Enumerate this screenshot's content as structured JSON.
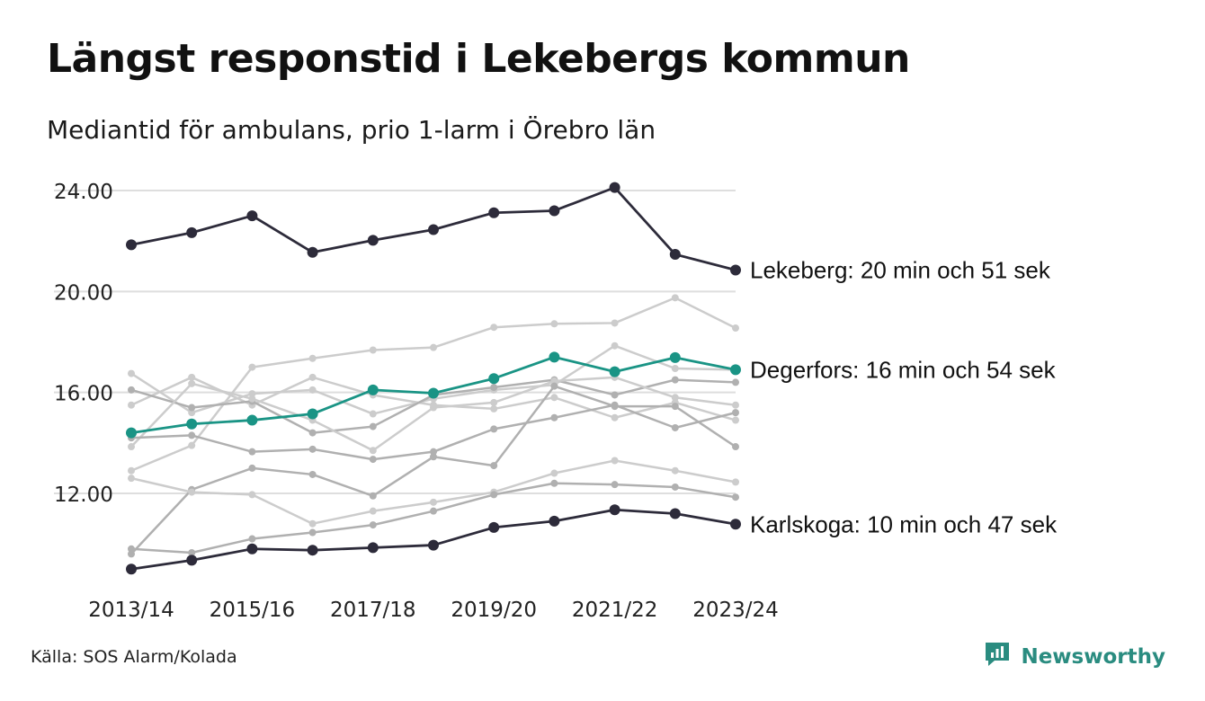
{
  "title": "Längst responstid i Lekebergs kommun",
  "subtitle": "Mediantid för ambulans, prio 1-larm i Örebro län",
  "source": "Källa: SOS Alarm/Kolada",
  "brand": {
    "name": "Newsworthy",
    "icon": "newsworthy-logo-icon",
    "color": "#2a8c80"
  },
  "chart_data": {
    "type": "line",
    "x": [
      "2013/14",
      "2014/15",
      "2015/16",
      "2016/17",
      "2017/18",
      "2018/19",
      "2019/20",
      "2020/21",
      "2021/22",
      "2022/23",
      "2023/24"
    ],
    "x_tick_labels": [
      "2013/14",
      "2015/16",
      "2017/18",
      "2019/20",
      "2021/22",
      "2023/24"
    ],
    "y_tick_labels": [
      "12.00",
      "16.00",
      "20.00",
      "24.00"
    ],
    "ylim": [
      8.5,
      25
    ],
    "grid": "horizontal",
    "colors": {
      "highlight_dark": "#2d2b3a",
      "highlight_teal": "#1a9485",
      "background_light": "#cccccc",
      "background_mid": "#b0b0b0"
    },
    "series": [
      {
        "name": "Lekeberg",
        "label": "Lekeberg: 20 min och 51 sek",
        "style": "dark",
        "values": [
          21.85,
          22.33,
          23.0,
          21.55,
          22.03,
          22.45,
          23.12,
          23.2,
          24.12,
          21.47,
          20.85
        ]
      },
      {
        "name": "Degerfors",
        "label": "Degerfors: 16 min och 54 sek",
        "style": "teal",
        "values": [
          14.4,
          14.75,
          14.9,
          15.15,
          16.1,
          15.97,
          16.55,
          17.4,
          16.82,
          17.38,
          16.9
        ]
      },
      {
        "name": "Karlskoga",
        "label": "Karlskoga: 10 min och 47 sek",
        "style": "dark",
        "values": [
          9.0,
          9.35,
          9.8,
          9.75,
          9.85,
          9.95,
          10.65,
          10.9,
          11.35,
          11.2,
          10.78
        ]
      },
      {
        "style": "light",
        "values": [
          12.9,
          13.9,
          17.0,
          17.35,
          17.68,
          17.78,
          18.58,
          18.72,
          18.75,
          19.75,
          18.55
        ]
      },
      {
        "style": "light",
        "values": [
          16.75,
          15.2,
          15.95,
          16.1,
          15.15,
          15.75,
          16.1,
          16.3,
          17.85,
          16.95,
          16.9
        ]
      },
      {
        "style": "light",
        "values": [
          15.5,
          16.6,
          15.5,
          16.6,
          15.9,
          15.5,
          15.35,
          15.8,
          15.0,
          15.6,
          14.9
        ]
      },
      {
        "style": "mid",
        "values": [
          16.1,
          15.4,
          15.65,
          14.4,
          14.65,
          15.9,
          16.2,
          16.5,
          15.9,
          16.5,
          16.4
        ]
      },
      {
        "style": "light",
        "values": [
          13.85,
          16.35,
          15.75,
          14.9,
          13.7,
          15.4,
          15.6,
          16.45,
          16.6,
          15.8,
          15.5
        ]
      },
      {
        "style": "mid",
        "values": [
          14.2,
          14.3,
          13.65,
          13.75,
          13.35,
          13.65,
          14.55,
          15.0,
          15.5,
          14.6,
          15.2
        ]
      },
      {
        "style": "mid",
        "values": [
          9.6,
          12.15,
          13.0,
          12.75,
          11.9,
          13.45,
          13.1,
          16.25,
          15.45,
          15.45,
          13.85
        ]
      },
      {
        "style": "light",
        "values": [
          12.6,
          12.05,
          11.95,
          10.8,
          11.3,
          11.65,
          12.05,
          12.8,
          13.3,
          12.9,
          12.45
        ]
      },
      {
        "style": "mid",
        "values": [
          9.8,
          9.65,
          10.2,
          10.45,
          10.75,
          11.3,
          11.95,
          12.4,
          12.35,
          12.25,
          11.85
        ]
      }
    ]
  }
}
